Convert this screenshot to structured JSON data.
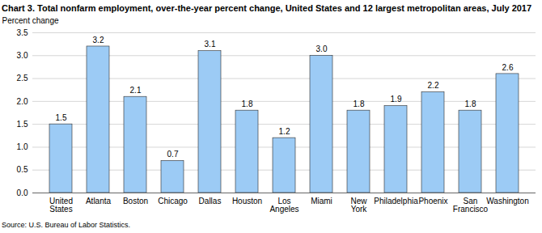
{
  "chart_data": {
    "type": "bar",
    "title": "Chart 3. Total nonfarm employment, over-the-year percent change, United States and 12 largest metropolitan areas, July 2017",
    "y_label": "Percent change",
    "source": "Source: U.S. Bureau of Labor Statistics.",
    "categories": [
      "United States",
      "Atlanta",
      "Boston",
      "Chicago",
      "Dallas",
      "Houston",
      "Los Angeles",
      "Miami",
      "New York",
      "Philadelphia",
      "Phoenix",
      "San Francisco",
      "Washington"
    ],
    "values": [
      1.5,
      3.2,
      2.1,
      0.7,
      3.1,
      1.8,
      1.2,
      3.0,
      1.8,
      1.9,
      2.2,
      1.8,
      2.6
    ],
    "value_labels": [
      "1.5",
      "3.2",
      "2.1",
      "0.7",
      "3.1",
      "1.8",
      "1.2",
      "3.0",
      "1.8",
      "1.9",
      "2.2",
      "1.8",
      "2.6"
    ],
    "data_labels": true,
    "color": "#9ccbf5",
    "ylim": [
      0,
      3.5
    ],
    "yticks": [
      {
        "value": 0,
        "label": "0.0"
      },
      {
        "value": 0.5,
        "label": "0.5"
      },
      {
        "value": 1,
        "label": "1.0"
      },
      {
        "value": 1.5,
        "label": "1.5"
      },
      {
        "value": 2,
        "label": "2.0"
      },
      {
        "value": 2.5,
        "label": "2.5"
      },
      {
        "value": 3,
        "label": "3.0"
      },
      {
        "value": 3.5,
        "label": "3.5"
      }
    ],
    "grid": true
  }
}
